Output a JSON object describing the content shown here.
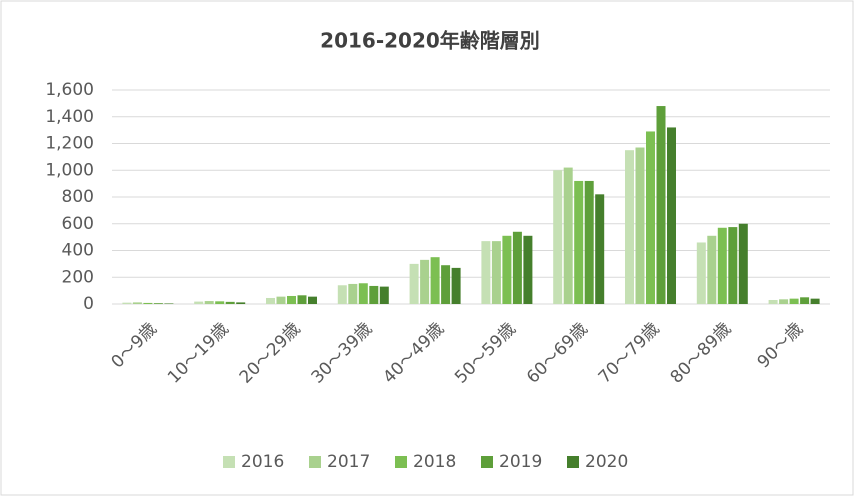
{
  "chart_data": {
    "type": "bar",
    "title": "2016-2020年齢階層別",
    "categories": [
      "0～9歳",
      "10～19歳",
      "20～29歳",
      "30～39歳",
      "40～49歳",
      "50～59歳",
      "60～69歳",
      "70～79歳",
      "80～89歳",
      "90～歳"
    ],
    "series": [
      {
        "name": "2016",
        "color": "#c5e0b4",
        "values": [
          10,
          18,
          45,
          140,
          300,
          470,
          1000,
          1150,
          460,
          30
        ]
      },
      {
        "name": "2017",
        "color": "#a9d18e",
        "values": [
          12,
          22,
          55,
          150,
          330,
          470,
          1020,
          1170,
          510,
          35
        ]
      },
      {
        "name": "2018",
        "color": "#7cbf52",
        "values": [
          8,
          20,
          60,
          155,
          350,
          510,
          920,
          1290,
          570,
          40
        ]
      },
      {
        "name": "2019",
        "color": "#5e9f3a",
        "values": [
          6,
          16,
          65,
          135,
          290,
          540,
          920,
          1480,
          575,
          50
        ]
      },
      {
        "name": "2020",
        "color": "#457f2c",
        "values": [
          4,
          12,
          55,
          130,
          270,
          510,
          820,
          1320,
          600,
          40
        ]
      }
    ],
    "ylim": [
      0,
      1600
    ],
    "yticks": [
      0,
      200,
      400,
      600,
      800,
      {
        "value": 1000,
        "label": "1,000"
      },
      {
        "value": 1200,
        "label": "1,200"
      },
      {
        "value": 1400,
        "label": "1,400"
      },
      {
        "value": 1600,
        "label": "1,600"
      }
    ],
    "grid": true,
    "legend": "bottom"
  }
}
